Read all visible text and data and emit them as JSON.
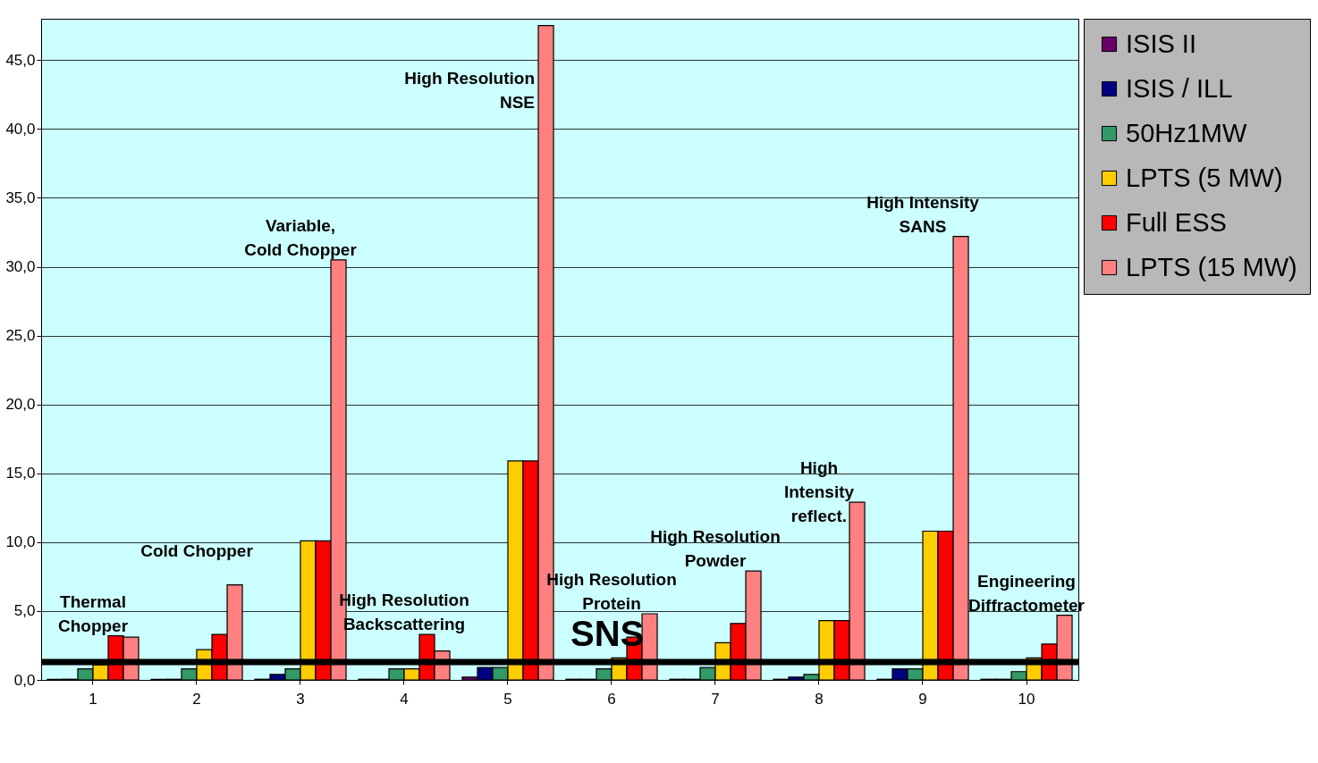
{
  "chart_data": {
    "type": "bar",
    "categories": [
      "1",
      "2",
      "3",
      "4",
      "5",
      "6",
      "7",
      "8",
      "9",
      "10"
    ],
    "series": [
      {
        "name": "ISIS II",
        "color": "#660066",
        "values": [
          0.05,
          0.05,
          0.05,
          0.05,
          0.2,
          0.05,
          0.05,
          0.05,
          0.05,
          0.05
        ]
      },
      {
        "name": "ISIS / ILL",
        "color": "#000080",
        "values": [
          0.05,
          0.05,
          0.4,
          0.05,
          0.9,
          0.05,
          0.05,
          0.2,
          0.8,
          0.05
        ]
      },
      {
        "name": "50Hz1MW",
        "color": "#339966",
        "values": [
          0.8,
          0.8,
          0.8,
          0.8,
          0.9,
          0.8,
          0.9,
          0.4,
          0.8,
          0.6
        ]
      },
      {
        "name": "LPTS (5 MW)",
        "color": "#ffcc00",
        "values": [
          1.1,
          2.2,
          10.1,
          0.8,
          15.9,
          1.6,
          2.7,
          4.3,
          10.8,
          1.6
        ]
      },
      {
        "name": "Full ESS",
        "color": "#ff0000",
        "values": [
          3.2,
          3.3,
          10.1,
          3.3,
          15.9,
          3.1,
          4.1,
          4.3,
          10.8,
          2.6
        ]
      },
      {
        "name": "LPTS (15 MW)",
        "color": "#ff8080",
        "values": [
          3.1,
          6.9,
          30.5,
          2.1,
          47.5,
          4.8,
          7.9,
          12.9,
          32.2,
          4.7
        ]
      }
    ],
    "ylim": [
      0,
      48
    ],
    "yticks": [
      {
        "value": 0,
        "label": "0,0"
      },
      {
        "value": 5,
        "label": "5,0"
      },
      {
        "value": 10,
        "label": "10,0"
      },
      {
        "value": 15,
        "label": "15,0"
      },
      {
        "value": 20,
        "label": "20,0"
      },
      {
        "value": 25,
        "label": "25,0"
      },
      {
        "value": 30,
        "label": "30,0"
      },
      {
        "value": 35,
        "label": "35,0"
      },
      {
        "value": 40,
        "label": "40,0"
      },
      {
        "value": 45,
        "label": "45,0"
      }
    ],
    "grid": "y",
    "legend": "top right",
    "ref_lines": [
      {
        "axis": "y",
        "value": 1.3,
        "label": "SNS",
        "color": "#000000"
      }
    ],
    "annotations": [
      "Thermal\nChopper",
      "Cold Chopper",
      "Variable,\nCold Chopper",
      "High Resolution\nBackscattering",
      "High Resolution\nNSE",
      "High Resolution\nProtein",
      "High Resolution\nPowder",
      "High\nIntensity\nreflect.",
      "High Intensity\nSANS",
      "Engineering\nDiffractometer"
    ]
  }
}
